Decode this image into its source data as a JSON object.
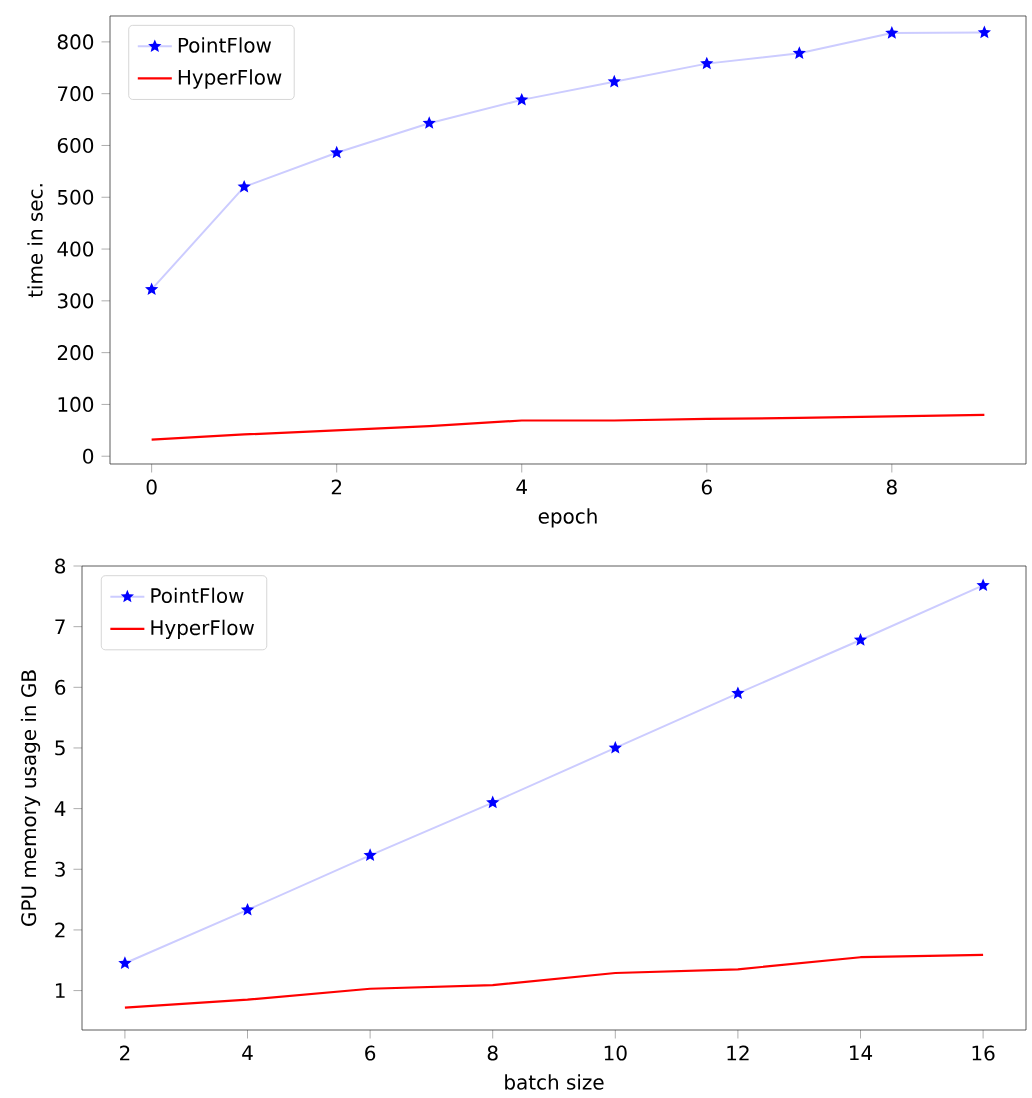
{
  "chart_data": [
    {
      "type": "line",
      "xlabel": "epoch",
      "ylabel": "time in sec.",
      "x": [
        0,
        1,
        2,
        3,
        4,
        5,
        6,
        7,
        8,
        9
      ],
      "series": [
        {
          "name": "PointFlow",
          "color": "#0000ff",
          "marker": "star",
          "values": [
            322,
            520,
            586,
            643,
            688,
            723,
            758,
            778,
            817,
            818
          ]
        },
        {
          "name": "HyperFlow",
          "color": "#ff0000",
          "marker": "none",
          "values": [
            32,
            42,
            50,
            58,
            69,
            69,
            72,
            74,
            77,
            80
          ]
        }
      ],
      "xlim": [
        -0.45,
        9.45
      ],
      "ylim": [
        -15,
        850
      ],
      "xticks": [
        0,
        2,
        4,
        6,
        8
      ],
      "yticks": [
        0,
        100,
        200,
        300,
        400,
        500,
        600,
        700,
        800
      ],
      "legend": "top left"
    },
    {
      "type": "line",
      "xlabel": "batch size",
      "ylabel": "GPU memory usage in GB",
      "x": [
        2,
        4,
        6,
        8,
        10,
        12,
        14,
        16
      ],
      "series": [
        {
          "name": "PointFlow",
          "color": "#0000ff",
          "marker": "star",
          "values": [
            1.45,
            2.33,
            3.23,
            4.1,
            5.0,
            5.9,
            6.78,
            7.68
          ]
        },
        {
          "name": "HyperFlow",
          "color": "#ff0000",
          "marker": "none",
          "values": [
            0.72,
            0.85,
            1.03,
            1.09,
            1.29,
            1.35,
            1.55,
            1.59
          ]
        }
      ],
      "xlim": [
        1.3,
        16.7
      ],
      "ylim": [
        0.35,
        8.0
      ],
      "xticks": [
        2,
        4,
        6,
        8,
        10,
        12,
        14,
        16
      ],
      "yticks": [
        1,
        2,
        3,
        4,
        5,
        6,
        7,
        8
      ],
      "legend": "top left"
    }
  ]
}
